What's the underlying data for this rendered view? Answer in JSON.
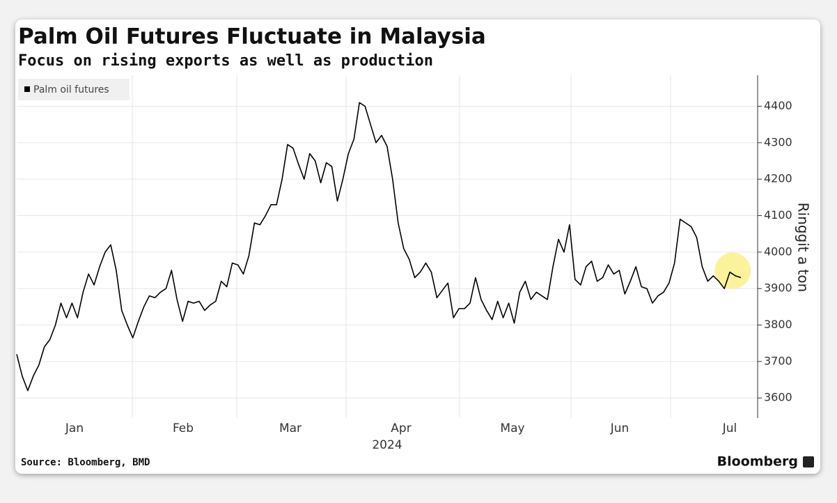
{
  "chart_data": {
    "type": "line",
    "title": "Palm Oil Futures Fluctuate in Malaysia",
    "subtitle": "Focus on rising exports as well as production",
    "y_label": "Ringgit a ton",
    "month_labels": [
      "Jan",
      "Feb",
      "Mar",
      "Apr",
      "May",
      "Jun",
      "Jul"
    ],
    "year_label": "2024",
    "source": "Source: Bloomberg, BMD",
    "brand": "Bloomberg",
    "ylim": [
      3545,
      4485
    ],
    "yticks": [
      3600,
      3700,
      3800,
      3900,
      4000,
      4100,
      4200,
      4300,
      4400
    ],
    "grid": true,
    "series": [
      {
        "name": "Palm oil futures",
        "color": "#000000",
        "values": [
          3720,
          3660,
          3620,
          3660,
          3690,
          3740,
          3760,
          3800,
          3860,
          3820,
          3860,
          3820,
          3890,
          3940,
          3910,
          3960,
          4000,
          4020,
          3950,
          3840,
          3800,
          3765,
          3810,
          3850,
          3880,
          3875,
          3890,
          3900,
          3950,
          3870,
          3810,
          3865,
          3860,
          3865,
          3840,
          3855,
          3865,
          3920,
          3905,
          3970,
          3965,
          3940,
          3990,
          4080,
          4075,
          4100,
          4130,
          4130,
          4200,
          4295,
          4285,
          4240,
          4200,
          4270,
          4250,
          4190,
          4245,
          4235,
          4140,
          4200,
          4270,
          4310,
          4410,
          4400,
          4350,
          4300,
          4320,
          4290,
          4200,
          4080,
          4010,
          3980,
          3930,
          3945,
          3970,
          3945,
          3875,
          3895,
          3915,
          3820,
          3845,
          3845,
          3860,
          3930,
          3870,
          3840,
          3815,
          3865,
          3820,
          3860,
          3805,
          3890,
          3920,
          3870,
          3890,
          3880,
          3870,
          3960,
          4035,
          4000,
          4075,
          3925,
          3910,
          3960,
          3975,
          3920,
          3930,
          3965,
          3940,
          3950,
          3885,
          3920,
          3960,
          3905,
          3900,
          3860,
          3880,
          3890,
          3915,
          3970,
          4090,
          4080,
          4070,
          4040,
          3960,
          3920,
          3935,
          3920,
          3900,
          3945,
          3935,
          3930
        ]
      }
    ]
  }
}
